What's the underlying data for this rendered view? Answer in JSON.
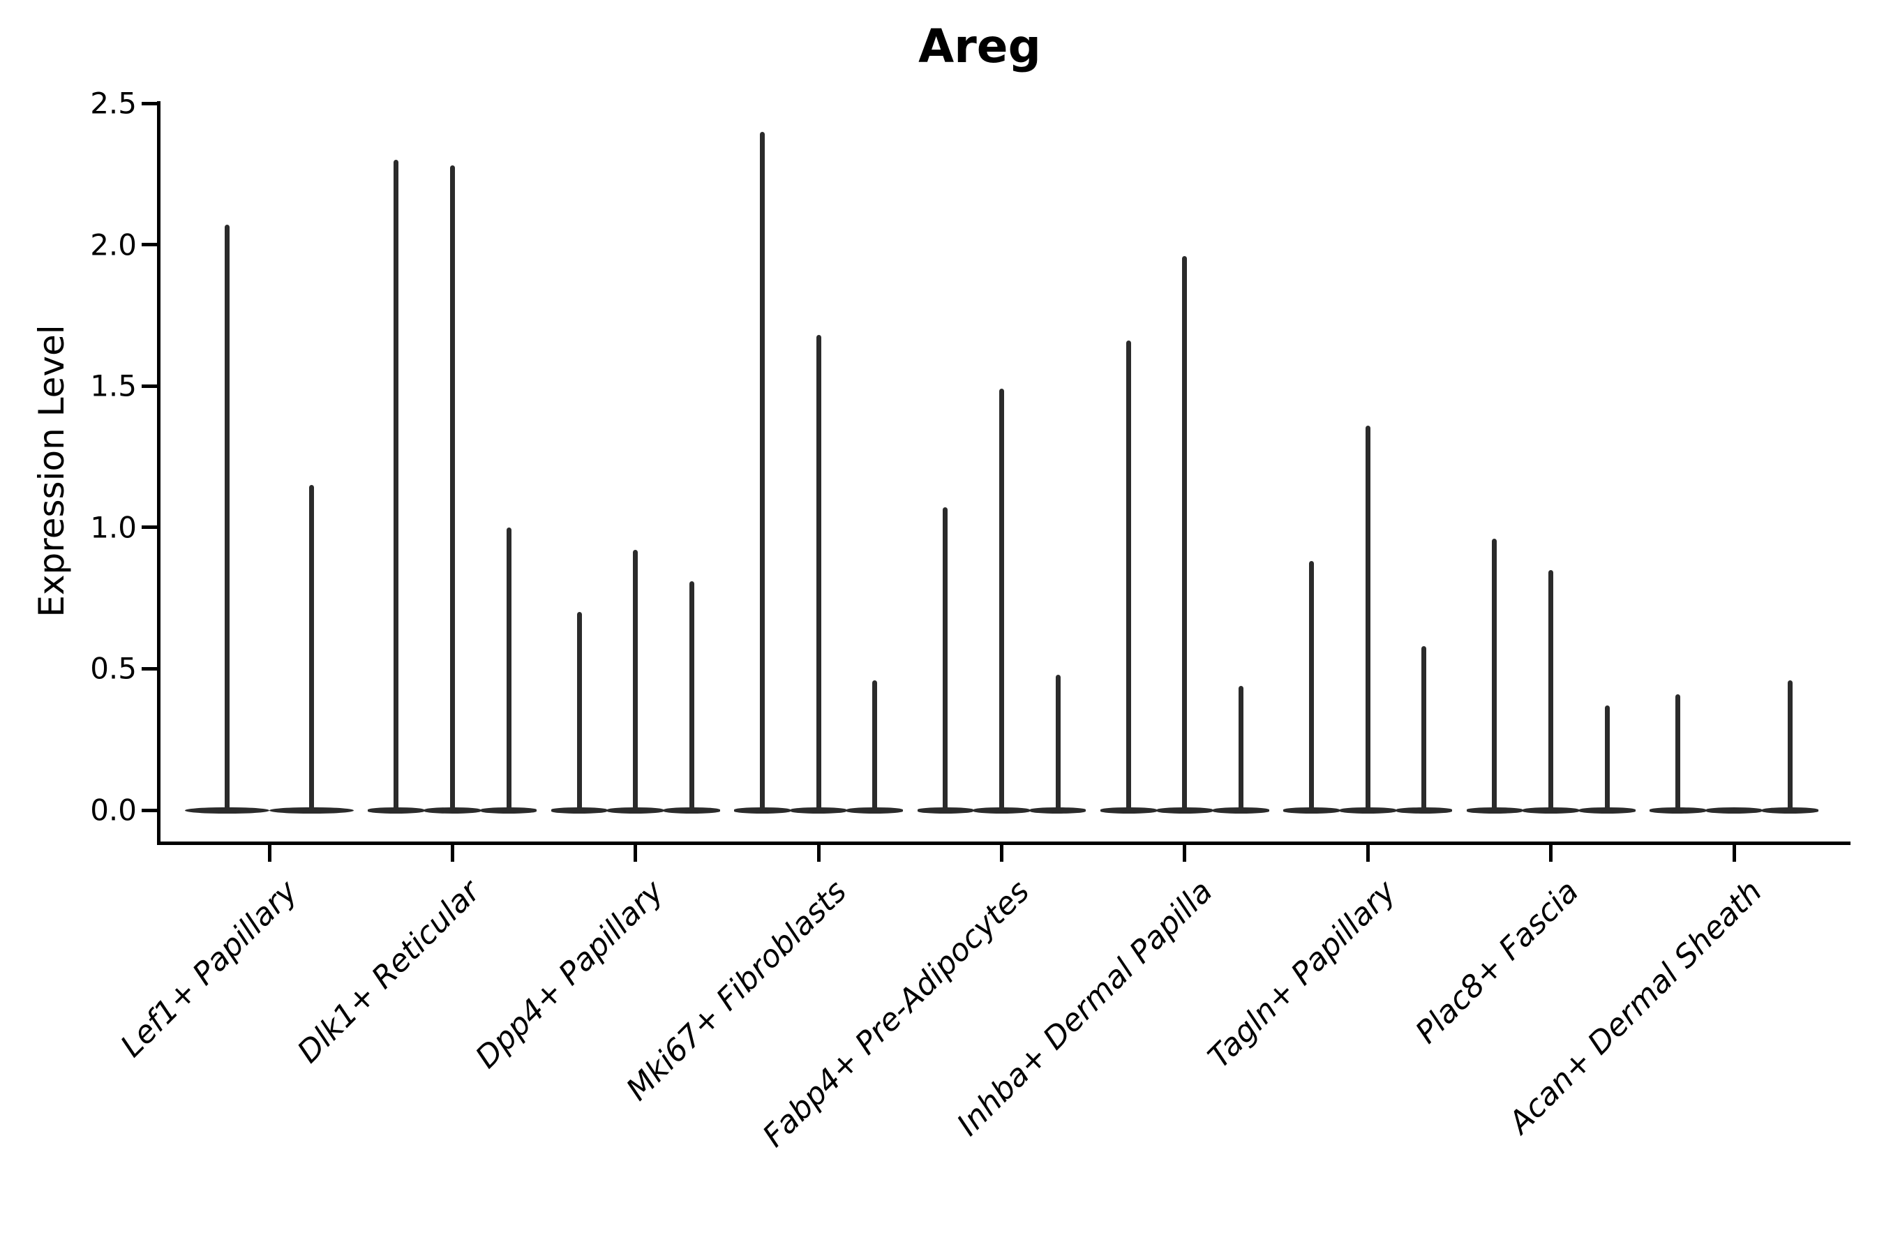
{
  "chart_data": {
    "type": "violin",
    "title": "Areg",
    "ylabel": "Expression Level",
    "xlabel": "",
    "ylim": [
      0,
      2.5
    ],
    "yticks": [
      0.0,
      0.5,
      1.0,
      1.5,
      2.0,
      2.5
    ],
    "ytick_labels": [
      "0.0",
      "0.5",
      "1.0",
      "1.5",
      "2.0",
      "2.5"
    ],
    "grid": false,
    "legend": "none",
    "categories": [
      "Lef1+ Papillary",
      "Dlk1+ Reticular",
      "Dpp4+ Papillary",
      "Mki67+ Fibroblasts",
      "Fabp4+ Pre-Adipocytes",
      "Inhba+ Dermal Papilla",
      "Tagln+ Papillary",
      "Plac8+ Fascia",
      "Acan+ Dermal Sheath"
    ],
    "description": "Violin plot of Areg expression; each category holds thin violins whose mass collapses to 0 with a narrow spike reaching the maximum expression value.",
    "violin_maxima": [
      [
        2.07,
        1.15
      ],
      [
        2.3,
        2.28,
        1.0
      ],
      [
        0.7,
        0.92,
        0.81
      ],
      [
        2.4,
        1.68,
        0.46
      ],
      [
        1.07,
        1.49,
        0.48
      ],
      [
        1.66,
        1.96,
        0.44
      ],
      [
        0.88,
        1.36,
        0.58
      ],
      [
        0.96,
        0.85,
        0.37
      ],
      [
        0.41,
        0.0,
        0.46
      ]
    ],
    "ink_color": "#2b2b2b",
    "axis_color": "#000000",
    "background_color": "#ffffff"
  }
}
